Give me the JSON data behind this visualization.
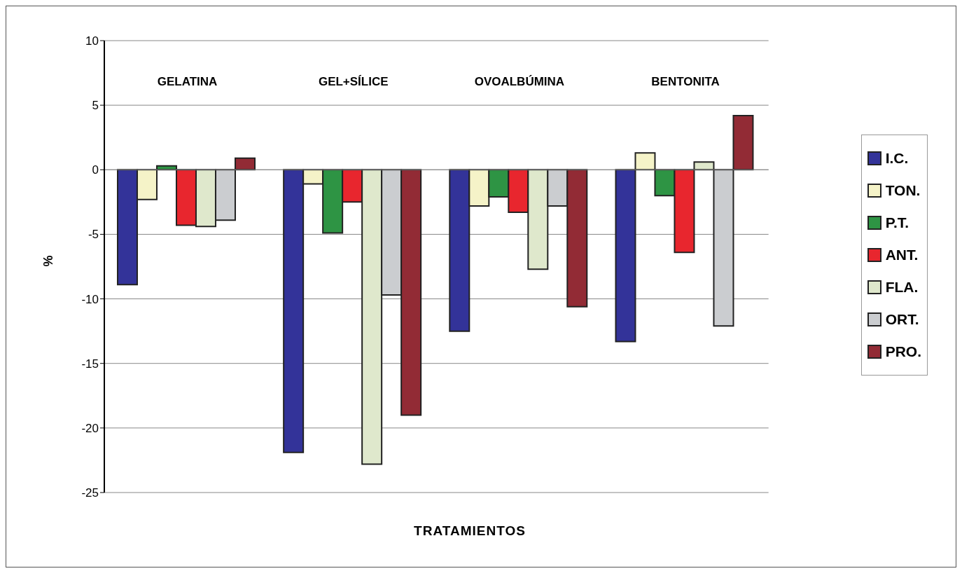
{
  "chart_data": {
    "type": "bar",
    "ylabel": "%",
    "xlabel": "TRATAMIENTOS",
    "categories": [
      "GELATINA",
      "GEL+SÍLICE",
      "OVOALBÚMINA",
      "BENTONITA"
    ],
    "series": [
      {
        "name": "I.C.",
        "color": "#333399",
        "values": [
          -8.9,
          -21.9,
          -12.5,
          -13.3
        ]
      },
      {
        "name": "TON.",
        "color": "#f5f3c8",
        "values": [
          -2.3,
          -1.1,
          -2.8,
          1.3
        ]
      },
      {
        "name": "P.T.",
        "color": "#2e9444",
        "values": [
          0.3,
          -4.9,
          -2.1,
          -2.0
        ]
      },
      {
        "name": "ANT.",
        "color": "#e8262e",
        "values": [
          -4.3,
          -2.5,
          -3.3,
          -6.4
        ]
      },
      {
        "name": "FLA.",
        "color": "#dfe8cc",
        "values": [
          -4.4,
          -22.8,
          -7.7,
          0.6
        ]
      },
      {
        "name": "ORT.",
        "color": "#cbcdd0",
        "values": [
          -3.9,
          -9.7,
          -2.8,
          -12.1
        ]
      },
      {
        "name": "PRO.",
        "color": "#922b35",
        "values": [
          0.9,
          -19.0,
          -10.6,
          4.2
        ]
      }
    ],
    "ylim": [
      -25,
      10
    ],
    "yticks": [
      -25,
      -20,
      -15,
      -10,
      -5,
      0,
      5,
      10
    ],
    "grid": "y",
    "legend": "right"
  }
}
